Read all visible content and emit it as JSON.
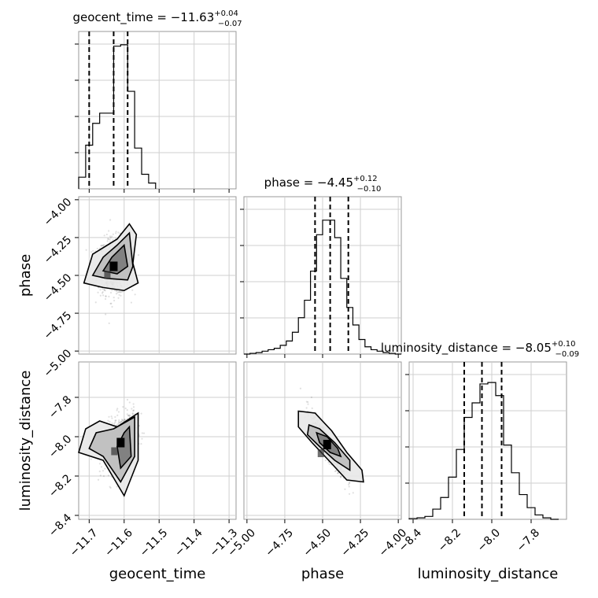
{
  "chart_data": {
    "type": "corner",
    "parameters": [
      "geocent_time",
      "phase",
      "luminosity_distance"
    ],
    "axis_labels": [
      "geocent_time",
      "phase",
      "luminosity_distance"
    ],
    "ranges": [
      [
        -11.73,
        -11.28
      ],
      [
        -5.02,
        -3.98
      ],
      [
        -8.42,
        -7.62
      ]
    ],
    "ticks": [
      {
        "values": [
          -11.7,
          -11.6,
          -11.5,
          -11.4,
          -11.3
        ],
        "labels": [
          "−11.7",
          "−11.6",
          "−11.5",
          "−11.4",
          "−11.3"
        ]
      },
      {
        "values": [
          -5.0,
          -4.75,
          -4.5,
          -4.25,
          -4.0
        ],
        "labels": [
          "−5.00",
          "−4.75",
          "−4.50",
          "−4.25",
          "−4.00"
        ]
      },
      {
        "values": [
          -8.4,
          -8.2,
          -8.0,
          -7.8
        ],
        "labels": [
          "−8.4",
          "−8.2",
          "−8.0",
          "−7.8"
        ]
      }
    ],
    "medians": [
      -11.63,
      -4.45,
      -8.05
    ],
    "quantiles": [
      [
        -11.7,
        -11.63,
        -11.59
      ],
      [
        -4.55,
        -4.45,
        -4.33
      ],
      [
        -8.14,
        -8.05,
        -7.95
      ]
    ],
    "titles": [
      {
        "name": "geocent_time",
        "value": "−11.63",
        "plus": "+0.04",
        "minus": "−0.07"
      },
      {
        "name": "phase",
        "value": "−4.45",
        "plus": "+0.12",
        "minus": "−0.10"
      },
      {
        "name": "luminosity_distance",
        "value": "−8.05",
        "plus": "+0.10",
        "minus": "−0.09"
      }
    ],
    "histograms": [
      {
        "bins": [
          -11.73,
          -11.71,
          -11.69,
          -11.67,
          -11.65,
          -11.63,
          -11.61,
          -11.59,
          -11.57,
          -11.55,
          -11.53,
          -11.51
        ],
        "counts": [
          0.08,
          0.3,
          0.45,
          0.52,
          0.52,
          0.98,
          0.99,
          0.67,
          0.28,
          0.1,
          0.04
        ]
      },
      {
        "bins": [
          -5.02,
          -4.98,
          -4.94,
          -4.9,
          -4.86,
          -4.82,
          -4.78,
          -4.74,
          -4.7,
          -4.66,
          -4.62,
          -4.58,
          -4.54,
          -4.5,
          -4.46,
          -4.42,
          -4.38,
          -4.34,
          -4.3,
          -4.26,
          -4.22,
          -4.18,
          -4.14,
          -4.1,
          -4.06,
          -4.02,
          -3.98
        ],
        "counts": [
          0,
          0.005,
          0.01,
          0.02,
          0.03,
          0.04,
          0.06,
          0.09,
          0.15,
          0.25,
          0.37,
          0.57,
          0.82,
          0.92,
          0.92,
          0.8,
          0.52,
          0.32,
          0.2,
          0.1,
          0.05,
          0.03,
          0.02,
          0.01,
          0.005,
          0
        ]
      },
      {
        "bins": [
          -8.42,
          -8.38,
          -8.34,
          -8.3,
          -8.26,
          -8.22,
          -8.18,
          -8.14,
          -8.1,
          -8.06,
          -8.02,
          -7.98,
          -7.94,
          -7.9,
          -7.86,
          -7.82,
          -7.78,
          -7.74,
          -7.7,
          -7.66
        ],
        "counts": [
          0.005,
          0.01,
          0.02,
          0.07,
          0.15,
          0.29,
          0.48,
          0.7,
          0.8,
          0.93,
          0.94,
          0.85,
          0.51,
          0.32,
          0.17,
          0.08,
          0.03,
          0.01,
          0
        ]
      }
    ],
    "pairs": [
      {
        "x": 0,
        "y": 1,
        "center": [
          -11.63,
          -4.44
        ],
        "contours": [
          [
            [
              -11.715,
              -4.55
            ],
            [
              -11.69,
              -4.36
            ],
            [
              -11.62,
              -4.26
            ],
            [
              -11.585,
              -4.16
            ],
            [
              -11.565,
              -4.23
            ],
            [
              -11.575,
              -4.42
            ],
            [
              -11.56,
              -4.55
            ],
            [
              -11.6,
              -4.6
            ],
            [
              -11.66,
              -4.58
            ]
          ],
          [
            [
              -11.69,
              -4.5
            ],
            [
              -11.66,
              -4.38
            ],
            [
              -11.62,
              -4.3
            ],
            [
              -11.585,
              -4.22
            ],
            [
              -11.575,
              -4.44
            ],
            [
              -11.59,
              -4.53
            ],
            [
              -11.65,
              -4.52
            ]
          ],
          [
            [
              -11.66,
              -4.47
            ],
            [
              -11.635,
              -4.38
            ],
            [
              -11.6,
              -4.3
            ],
            [
              -11.59,
              -4.44
            ],
            [
              -11.62,
              -4.49
            ]
          ]
        ]
      },
      {
        "x": 0,
        "y": 2,
        "center": [
          -11.61,
          -8.03
        ],
        "contours": [
          [
            [
              -11.73,
              -8.08
            ],
            [
              -11.71,
              -7.96
            ],
            [
              -11.67,
              -7.92
            ],
            [
              -11.62,
              -7.95
            ],
            [
              -11.56,
              -7.88
            ],
            [
              -11.56,
              -8.12
            ],
            [
              -11.6,
              -8.3
            ],
            [
              -11.66,
              -8.12
            ]
          ],
          [
            [
              -11.7,
              -8.06
            ],
            [
              -11.68,
              -7.98
            ],
            [
              -11.63,
              -7.96
            ],
            [
              -11.57,
              -7.9
            ],
            [
              -11.57,
              -8.1
            ],
            [
              -11.61,
              -8.23
            ],
            [
              -11.66,
              -8.1
            ]
          ],
          [
            [
              -11.62,
              -8.05
            ],
            [
              -11.6,
              -7.98
            ],
            [
              -11.585,
              -7.95
            ],
            [
              -11.58,
              -8.1
            ],
            [
              -11.61,
              -8.16
            ]
          ]
        ]
      },
      {
        "x": 1,
        "y": 2,
        "center": [
          -4.47,
          -8.04
        ],
        "contours": [
          [
            [
              -4.66,
              -7.87
            ],
            [
              -4.55,
              -7.88
            ],
            [
              -4.44,
              -7.97
            ],
            [
              -4.34,
              -8.08
            ],
            [
              -4.24,
              -8.17
            ],
            [
              -4.23,
              -8.23
            ],
            [
              -4.34,
              -8.22
            ],
            [
              -4.46,
              -8.12
            ],
            [
              -4.57,
              -8.03
            ],
            [
              -4.66,
              -7.95
            ]
          ],
          [
            [
              -4.59,
              -7.94
            ],
            [
              -4.52,
              -7.96
            ],
            [
              -4.42,
              -8.03
            ],
            [
              -4.32,
              -8.12
            ],
            [
              -4.32,
              -8.17
            ],
            [
              -4.42,
              -8.12
            ],
            [
              -4.52,
              -8.05
            ],
            [
              -4.6,
              -7.99
            ]
          ],
          [
            [
              -4.54,
              -7.98
            ],
            [
              -4.47,
              -8.0
            ],
            [
              -4.4,
              -8.06
            ],
            [
              -4.38,
              -8.1
            ],
            [
              -4.45,
              -8.08
            ],
            [
              -4.52,
              -8.03
            ]
          ]
        ]
      }
    ]
  }
}
